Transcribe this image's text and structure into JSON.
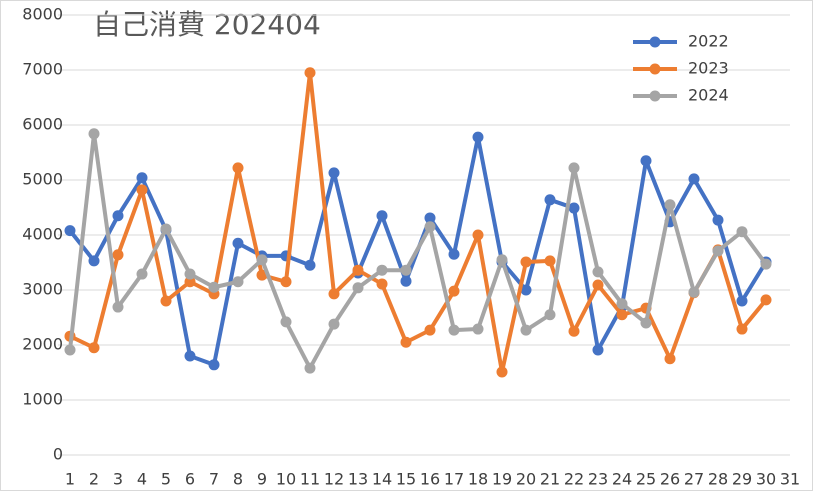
{
  "chart_data": {
    "type": "line",
    "title": "自己消費 202404",
    "categories": [
      "1",
      "2",
      "3",
      "4",
      "5",
      "6",
      "7",
      "8",
      "9",
      "10",
      "11",
      "12",
      "13",
      "14",
      "15",
      "16",
      "17",
      "18",
      "19",
      "20",
      "21",
      "22",
      "23",
      "24",
      "25",
      "26",
      "27",
      "28",
      "29",
      "30",
      "31"
    ],
    "series": [
      {
        "name": "2022",
        "color": "#4472c4",
        "values": [
          4080,
          3530,
          4350,
          5040,
          4090,
          1800,
          1640,
          3850,
          3620,
          3620,
          3450,
          5130,
          3310,
          4350,
          3160,
          4310,
          3650,
          5780,
          3510,
          3000,
          4640,
          4490,
          1910,
          2700,
          5350,
          4240,
          5020,
          4270,
          2800,
          3510,
          null
        ]
      },
      {
        "name": "2023",
        "color": "#ed7d31",
        "values": [
          2160,
          1950,
          3640,
          4820,
          2800,
          3150,
          2930,
          5220,
          3270,
          3150,
          6950,
          2930,
          3360,
          3110,
          2050,
          2270,
          2980,
          4000,
          1510,
          3510,
          3530,
          2250,
          3090,
          2550,
          2670,
          1750,
          2950,
          3730,
          2290,
          2820,
          null
        ]
      },
      {
        "name": "2024",
        "color": "#a5a5a5",
        "values": [
          1910,
          5840,
          2690,
          3290,
          4110,
          3290,
          3050,
          3150,
          3550,
          2420,
          1580,
          2380,
          3040,
          3360,
          3360,
          4150,
          2270,
          2290,
          3550,
          2270,
          2550,
          5220,
          3330,
          2750,
          2400,
          4550,
          2960,
          3710,
          4060,
          3470,
          null
        ]
      }
    ],
    "ylim": [
      0,
      8000
    ],
    "yticks": [
      0,
      1000,
      2000,
      3000,
      4000,
      5000,
      6000,
      7000,
      8000
    ],
    "grid": true,
    "legend": "upper right"
  }
}
